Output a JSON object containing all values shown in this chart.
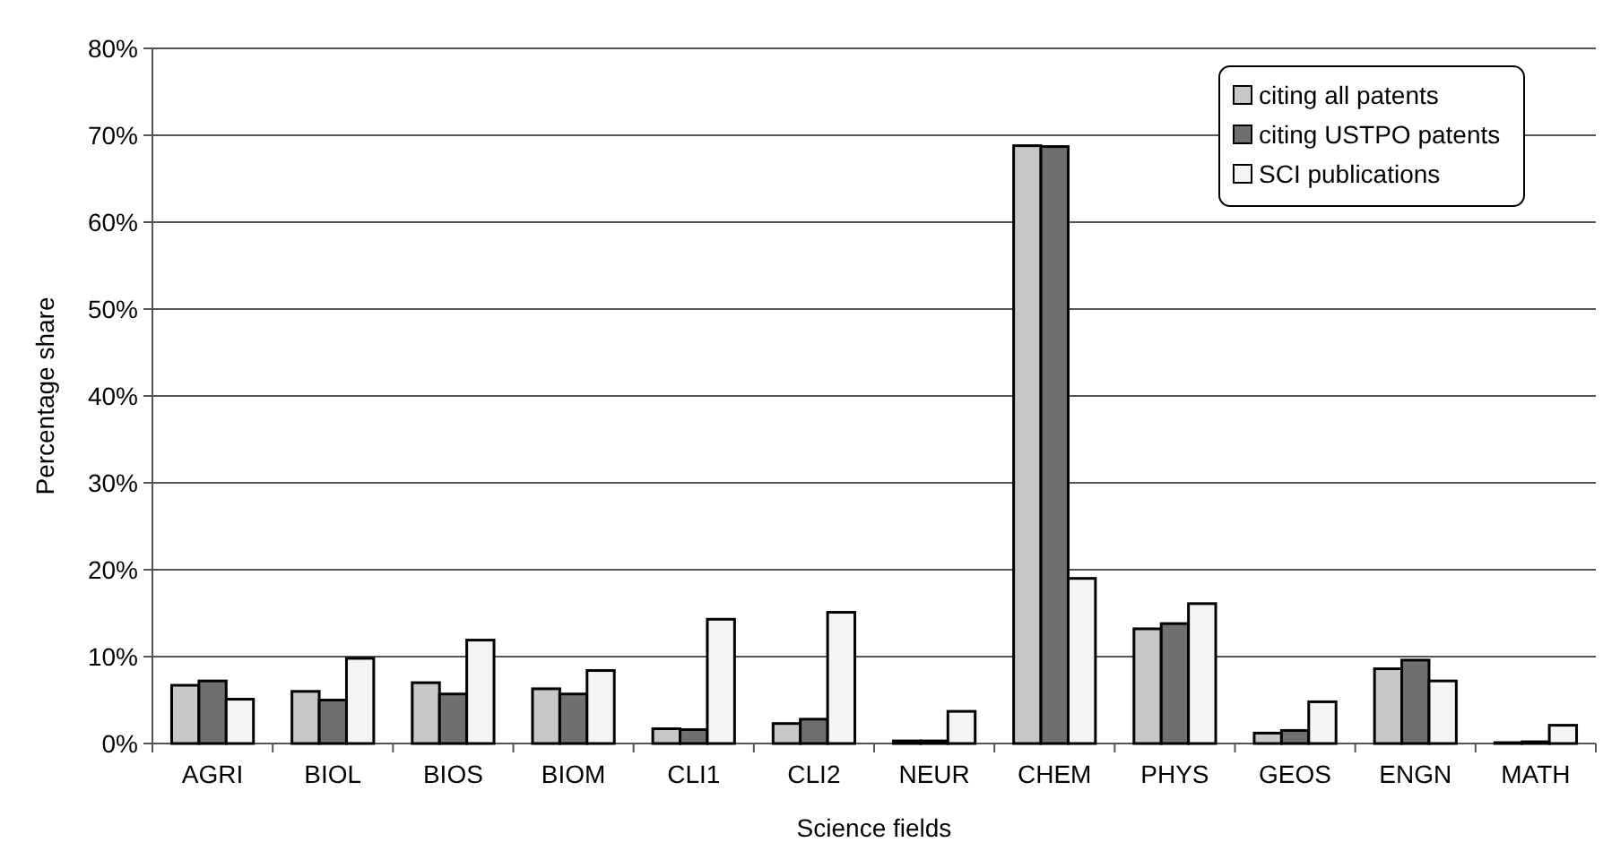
{
  "chart_data": {
    "type": "bar",
    "xlabel": "Science fields",
    "ylabel": "Percentage share",
    "categories": [
      "AGRI",
      "BIOL",
      "BIOS",
      "BIOM",
      "CLI1",
      "CLI2",
      "NEUR",
      "CHEM",
      "PHYS",
      "GEOS",
      "ENGN",
      "MATH"
    ],
    "series": [
      {
        "name": "citing all patents",
        "color": "#c8c8c8",
        "values": [
          6.7,
          6.0,
          7.0,
          6.3,
          1.7,
          2.3,
          0.3,
          68.8,
          13.2,
          1.2,
          8.6,
          0.1
        ]
      },
      {
        "name": "citing USTPO patents",
        "color": "#707070",
        "values": [
          7.2,
          5.0,
          5.7,
          5.7,
          1.6,
          2.8,
          0.3,
          68.7,
          13.8,
          1.5,
          9.6,
          0.2
        ]
      },
      {
        "name": "SCI publications",
        "color": "#f4f4f4",
        "values": [
          5.1,
          9.8,
          11.9,
          8.4,
          14.3,
          15.1,
          3.7,
          19.0,
          16.1,
          4.8,
          7.2,
          2.1
        ]
      }
    ],
    "ylim": [
      0,
      80
    ],
    "yticks": [
      {
        "value": 0,
        "label": "0%"
      },
      {
        "value": 10,
        "label": "10%"
      },
      {
        "value": 20,
        "label": "20%"
      },
      {
        "value": 30,
        "label": "30%"
      },
      {
        "value": 40,
        "label": "40%"
      },
      {
        "value": 50,
        "label": "50%"
      },
      {
        "value": 60,
        "label": "60%"
      },
      {
        "value": 70,
        "label": "70%"
      },
      {
        "value": 80,
        "label": "80%"
      }
    ],
    "grid": "y",
    "legend": "top right"
  }
}
